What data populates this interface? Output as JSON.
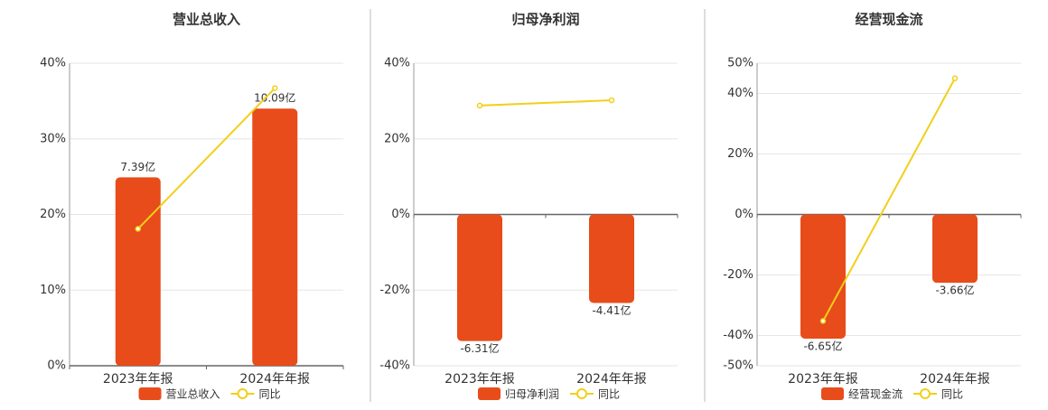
{
  "chart_data": [
    {
      "type": "bar",
      "title": "营业总收入",
      "categories": [
        "2023年年报",
        "2024年年报"
      ],
      "series": [
        {
          "name": "营业总收入",
          "color": "#e84c1a",
          "axis": "y2",
          "values": [
            7.39,
            10.09
          ],
          "value_labels": [
            "7.39亿",
            "10.09亿"
          ]
        },
        {
          "name": "同比",
          "color": "#f2cf1a",
          "type": "line",
          "values": [
            18.1,
            36.7
          ]
        }
      ],
      "ylim": [
        0,
        40
      ],
      "yticks": [
        {
          "value": 0,
          "label": "0%"
        },
        {
          "value": 10,
          "label": "10%"
        },
        {
          "value": 20,
          "label": "20%"
        },
        {
          "value": 30,
          "label": "30%"
        },
        {
          "value": 40,
          "label": "40%"
        }
      ],
      "y2lim": [
        0,
        11.87
      ],
      "grid": true
    },
    {
      "type": "bar",
      "title": "归母净利润",
      "categories": [
        "2023年年报",
        "2024年年报"
      ],
      "series": [
        {
          "name": "归母净利润",
          "color": "#e84c1a",
          "axis": "y2",
          "values": [
            -6.31,
            -4.41
          ],
          "value_labels": [
            "-6.31亿",
            "-4.41亿"
          ]
        },
        {
          "name": "同比",
          "color": "#f2cf1a",
          "type": "line",
          "values": [
            28.8,
            30.2
          ]
        }
      ],
      "ylim": [
        -40,
        40
      ],
      "yticks": [
        {
          "value": -40,
          "label": "-40%"
        },
        {
          "value": -20,
          "label": "-20%"
        },
        {
          "value": 0,
          "label": "0%"
        },
        {
          "value": 20,
          "label": "20%"
        },
        {
          "value": 40,
          "label": "40%"
        }
      ],
      "y2lim": [
        -7.54,
        7.54
      ],
      "grid": true
    },
    {
      "type": "bar",
      "title": "经营现金流",
      "categories": [
        "2023年年报",
        "2024年年报"
      ],
      "series": [
        {
          "name": "经营现金流",
          "color": "#e84c1a",
          "axis": "y2",
          "values": [
            -6.65,
            -3.66
          ],
          "value_labels": [
            "-6.65亿",
            "-3.66亿"
          ]
        },
        {
          "name": "同比",
          "color": "#f2cf1a",
          "type": "line",
          "values": [
            -35.2,
            45.0
          ]
        }
      ],
      "ylim": [
        -50,
        50
      ],
      "yticks": [
        {
          "value": -50,
          "label": "-50%"
        },
        {
          "value": -40,
          "label": "-40%"
        },
        {
          "value": -20,
          "label": "-20%"
        },
        {
          "value": 0,
          "label": "0%"
        },
        {
          "value": 20,
          "label": "20%"
        },
        {
          "value": 40,
          "label": "40%"
        },
        {
          "value": 50,
          "label": "50%"
        }
      ],
      "y2lim": [
        -8.1,
        8.1
      ],
      "grid": true
    }
  ]
}
